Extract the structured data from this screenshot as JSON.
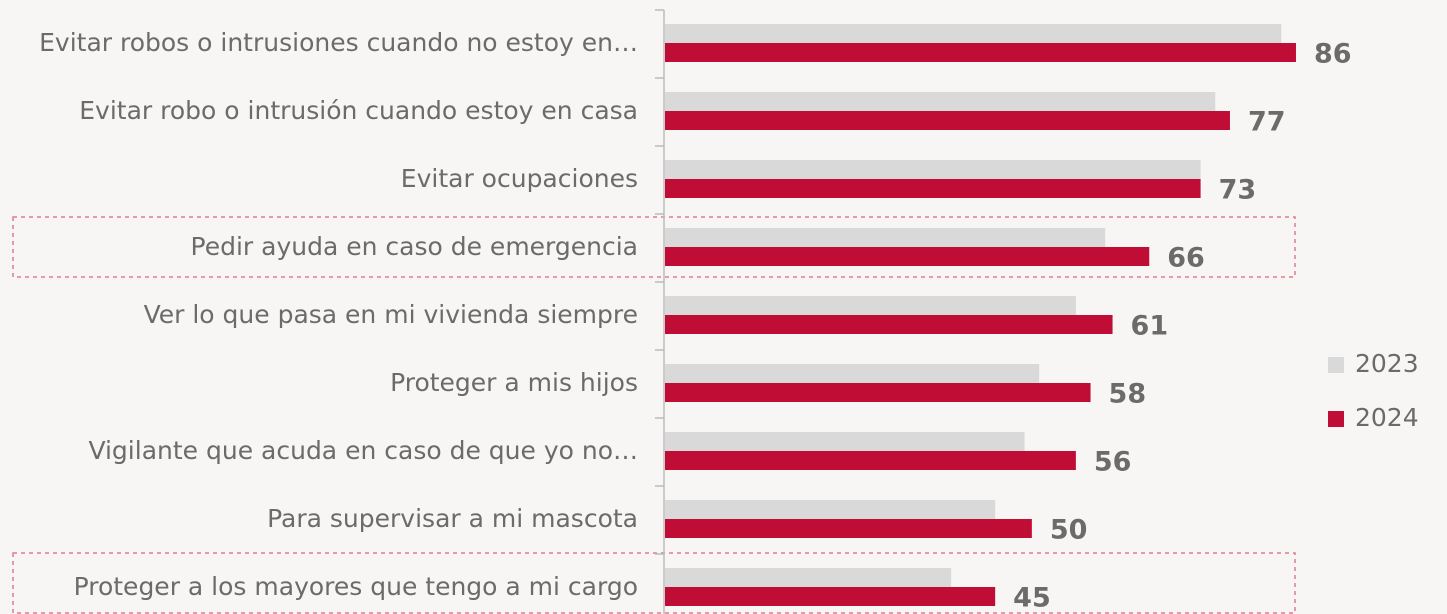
{
  "chart_data": {
    "type": "bar",
    "orientation": "horizontal",
    "categories": [
      "Evitar robos o intrusiones cuando no estoy en…",
      "Evitar robo o intrusión cuando estoy en casa",
      "Evitar ocupaciones",
      "Pedir ayuda en caso de emergencia",
      "Ver lo que pasa en mi vivienda siempre",
      "Proteger a mis hijos",
      "Vigilante que acuda en caso de que yo no…",
      "Para supervisar a mi mascota",
      "Proteger a los mayores que tengo a mi cargo"
    ],
    "series": [
      {
        "name": "2023",
        "color": "#d9d9d9",
        "values": [
          84,
          75,
          73,
          60,
          56,
          51,
          49,
          45,
          39
        ]
      },
      {
        "name": "2024",
        "color": "#c00d36",
        "values": [
          86,
          77,
          73,
          66,
          61,
          58,
          56,
          50,
          45
        ]
      }
    ],
    "data_labels_series": 1,
    "legend": "right"
  }
}
